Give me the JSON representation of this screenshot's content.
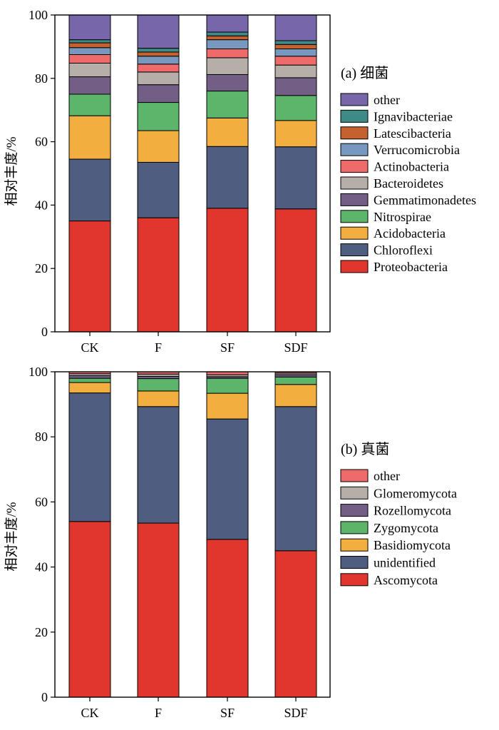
{
  "chart_data": [
    {
      "type": "stacked-bar",
      "panel_label": "(a) 细菌",
      "ylabel": "相对丰度/%",
      "ylim": [
        0,
        100
      ],
      "yticks": [
        0,
        20,
        40,
        60,
        80,
        100
      ],
      "categories": [
        "CK",
        "F",
        "SF",
        "SDF"
      ],
      "series": [
        {
          "name": "Proteobacteria",
          "color": "#e0362d",
          "values": [
            35.0,
            36.0,
            39.0,
            38.8
          ]
        },
        {
          "name": "Chloroflexi",
          "color": "#4e5d80",
          "values": [
            19.5,
            17.5,
            19.5,
            19.6
          ]
        },
        {
          "name": "Acidobacteria",
          "color": "#f2ae3f",
          "values": [
            13.7,
            10.0,
            9.0,
            8.3
          ]
        },
        {
          "name": "Nitrospirae",
          "color": "#5db56b",
          "values": [
            6.8,
            8.9,
            8.5,
            7.9
          ]
        },
        {
          "name": "Gemmatimonadetes",
          "color": "#735e86",
          "values": [
            5.5,
            5.6,
            5.2,
            5.6
          ]
        },
        {
          "name": "Bacteroidetes",
          "color": "#b5aea9",
          "values": [
            4.3,
            4.0,
            5.3,
            4.0
          ]
        },
        {
          "name": "Actinobacteria",
          "color": "#ef6b6b",
          "values": [
            2.7,
            2.5,
            2.8,
            2.8
          ]
        },
        {
          "name": "Verrucomicrobia",
          "color": "#7898c0",
          "values": [
            2.2,
            2.5,
            2.9,
            2.3
          ]
        },
        {
          "name": "Latescibacteria",
          "color": "#c4612f",
          "values": [
            1.5,
            1.3,
            1.2,
            1.4
          ]
        },
        {
          "name": "Ignavibacteriae",
          "color": "#3f8a86",
          "values": [
            1.0,
            1.2,
            1.2,
            1.2
          ]
        },
        {
          "name": "other",
          "color": "#7767aa",
          "values": [
            7.8,
            10.5,
            5.4,
            8.1
          ]
        }
      ]
    },
    {
      "type": "stacked-bar",
      "panel_label": "(b) 真菌",
      "ylabel": "相对丰度/%",
      "ylim": [
        0,
        100
      ],
      "yticks": [
        0,
        20,
        40,
        60,
        80,
        100
      ],
      "categories": [
        "CK",
        "F",
        "SF",
        "SDF"
      ],
      "series": [
        {
          "name": "Ascomycota",
          "color": "#e0362d",
          "values": [
            54.0,
            53.5,
            48.5,
            45.0
          ]
        },
        {
          "name": "unidentified",
          "color": "#4e5d80",
          "values": [
            39.5,
            35.8,
            37.0,
            44.3
          ]
        },
        {
          "name": "Basidiomycota",
          "color": "#f2ae3f",
          "values": [
            3.2,
            4.8,
            7.9,
            6.8
          ]
        },
        {
          "name": "Zygomycota",
          "color": "#5db56b",
          "values": [
            1.3,
            3.8,
            4.6,
            2.3
          ]
        },
        {
          "name": "Rozellomycota",
          "color": "#735e86",
          "values": [
            0.8,
            0.7,
            0.5,
            0.7
          ]
        },
        {
          "name": "Glomeromycota",
          "color": "#b5aea9",
          "values": [
            0.6,
            0.7,
            0.6,
            0.5
          ]
        },
        {
          "name": "other",
          "color": "#ef6b6b",
          "values": [
            0.6,
            0.7,
            0.9,
            0.4
          ]
        }
      ]
    }
  ]
}
